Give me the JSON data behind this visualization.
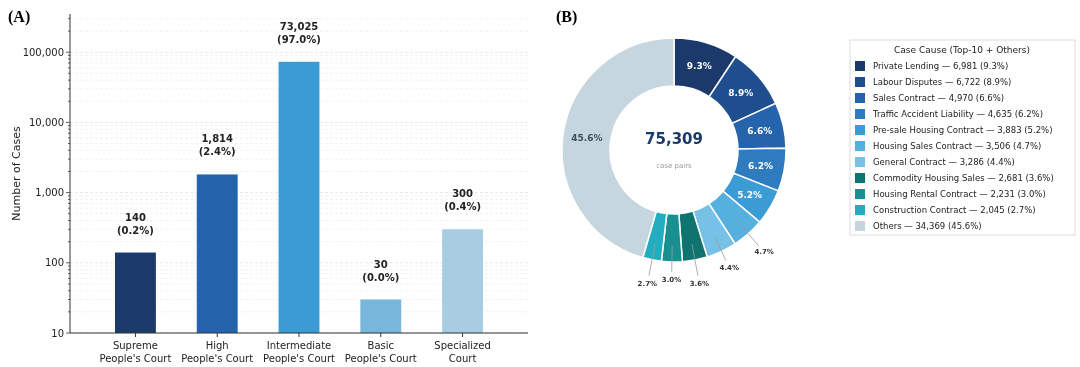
{
  "chart_data": [
    {
      "type": "bar",
      "title": "(A)",
      "ylabel": "Number of Cases",
      "categories": [
        "Supreme\nPeople's Court",
        "High\nPeople's Court",
        "Intermediate\nPeople's Court",
        "Basic\nPeople's Court",
        "Specialized\nCourt"
      ],
      "values": [
        140,
        1814,
        73025,
        30,
        300
      ],
      "colors": [
        "#1b3a6b",
        "#2364ad",
        "#3a9bd5",
        "#78b7dc",
        "#a8cde2"
      ],
      "value_labels": [
        "140\n(0.2%)",
        "1,814\n(2.4%)",
        "73,025\n(97.0%)",
        "30\n(0.0%)",
        "300\n(0.4%)"
      ],
      "log": true,
      "ylim": [
        10,
        350000
      ],
      "yticks": [
        {
          "value": 10,
          "label": "10"
        },
        {
          "value": 20,
          "label": null
        },
        {
          "value": 30,
          "label": null
        },
        {
          "value": 40,
          "label": null
        },
        {
          "value": 50,
          "label": null
        },
        {
          "value": 60,
          "label": null
        },
        {
          "value": 70,
          "label": null
        },
        {
          "value": 80,
          "label": null
        },
        {
          "value": 90,
          "label": null
        },
        {
          "value": 100,
          "label": "100"
        },
        {
          "value": 200,
          "label": null
        },
        {
          "value": 300,
          "label": null
        },
        {
          "value": 400,
          "label": null
        },
        {
          "value": 500,
          "label": null
        },
        {
          "value": 600,
          "label": null
        },
        {
          "value": 700,
          "label": null
        },
        {
          "value": 800,
          "label": null
        },
        {
          "value": 900,
          "label": null
        },
        {
          "value": 1000,
          "label": "1,000"
        },
        {
          "value": 2000,
          "label": null
        },
        {
          "value": 3000,
          "label": null
        },
        {
          "value": 4000,
          "label": null
        },
        {
          "value": 5000,
          "label": null
        },
        {
          "value": 6000,
          "label": null
        },
        {
          "value": 7000,
          "label": null
        },
        {
          "value": 8000,
          "label": null
        },
        {
          "value": 9000,
          "label": null
        },
        {
          "value": 10000,
          "label": "10,000"
        },
        {
          "value": 20000,
          "label": null
        },
        {
          "value": 30000,
          "label": null
        },
        {
          "value": 40000,
          "label": null
        },
        {
          "value": 50000,
          "label": null
        },
        {
          "value": 60000,
          "label": null
        },
        {
          "value": 70000,
          "label": null
        },
        {
          "value": 80000,
          "label": null
        },
        {
          "value": 90000,
          "label": null
        },
        {
          "value": 100000,
          "label": "100,000"
        },
        {
          "value": 200000,
          "label": null
        },
        {
          "value": 300000,
          "label": null
        }
      ],
      "grid": "y"
    },
    {
      "type": "donut",
      "title": "(B)",
      "legend_title": "Case Cause (Top-10 + Others)",
      "legend": "right",
      "categories": [
        "Private Lending  —  6,981  (9.3%)",
        "Labour Disputes  —  6,722  (8.9%)",
        "Sales Contract  —  4,970  (6.6%)",
        "Traffic Accident Liability  —  4,635  (6.2%)",
        "Pre-sale Housing Contract  —  3,883  (5.2%)",
        "Housing Sales Contract  —  3,506  (4.7%)",
        "General Contract  —  3,286  (4.4%)",
        "Commodity Housing Sales  —  2,681  (3.6%)",
        "Housing Rental Contract  —  2,231  (3.0%)",
        "Construction Contract  —  2,045  (2.7%)",
        "Others  —  34,369  (45.6%)"
      ],
      "values": [
        9.3,
        8.9,
        6.6,
        6.2,
        5.2,
        4.7,
        4.4,
        3.6,
        3.0,
        2.7,
        45.6
      ],
      "colors": [
        "#1b3a6b",
        "#1f4e8f",
        "#2563ad",
        "#2e7bc0",
        "#3a9bd5",
        "#56b0de",
        "#78c1e6",
        "#0f7370",
        "#19908f",
        "#22aec0",
        "#c5d6df"
      ],
      "value_labels": [
        "9.3%",
        "8.9%",
        "6.6%",
        "6.2%",
        "5.2%",
        "4.7%",
        "4.4%",
        "3.6%",
        "3.0%",
        "2.7%",
        "45.6%"
      ],
      "annotations": [
        "75,309",
        "case pairs"
      ]
    }
  ]
}
